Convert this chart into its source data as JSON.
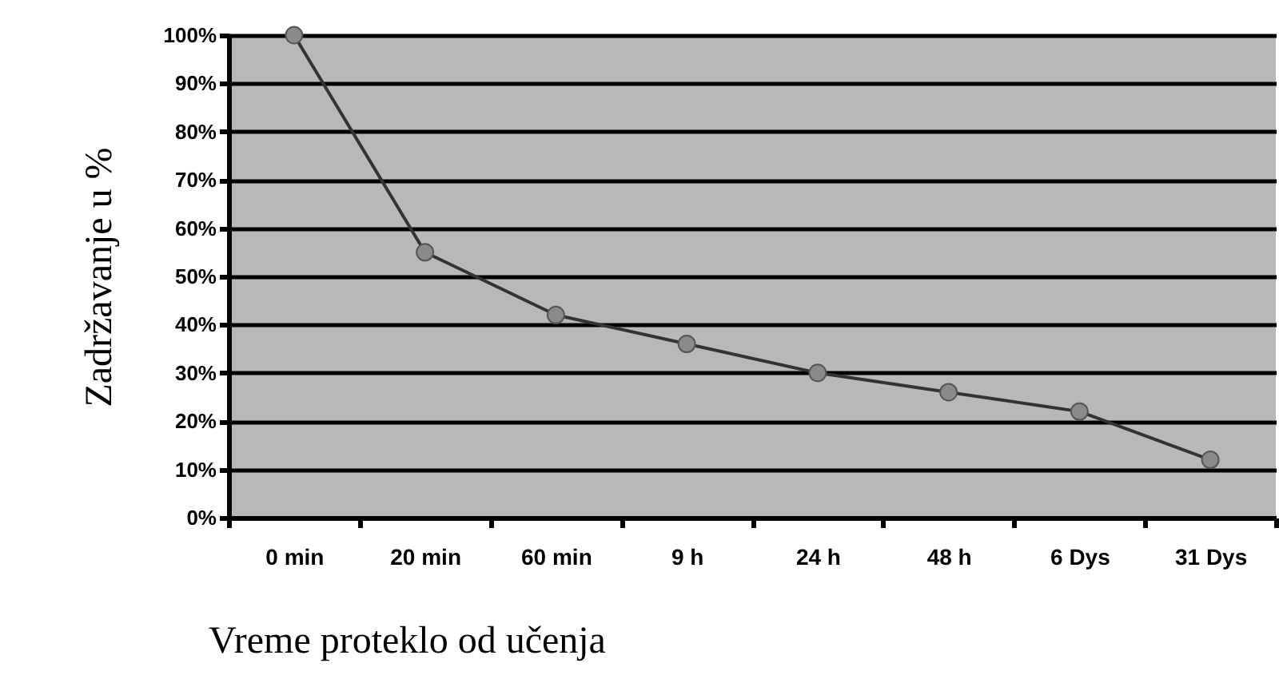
{
  "chart_data": {
    "type": "line",
    "xlabel": "Vreme proteklo od učenja",
    "ylabel": "Zadržavanje u %",
    "categories": [
      "0 min",
      "20 min",
      "60 min",
      "9 h",
      "24 h",
      "48 h",
      "6 Dys",
      "31 Dys"
    ],
    "series": [
      {
        "color": "#333333",
        "values": [
          100,
          55,
          42,
          36,
          30,
          26,
          22,
          12
        ]
      }
    ],
    "ylim": [
      0,
      100
    ],
    "yticks": [
      {
        "value": 0,
        "label": "0%"
      },
      {
        "value": 10,
        "label": "10%"
      },
      {
        "value": 20,
        "label": "20%"
      },
      {
        "value": 30,
        "label": "30%"
      },
      {
        "value": 40,
        "label": "40%"
      },
      {
        "value": 50,
        "label": "50%"
      },
      {
        "value": 60,
        "label": "60%"
      },
      {
        "value": 70,
        "label": "70%"
      },
      {
        "value": 80,
        "label": "80%"
      },
      {
        "value": 90,
        "label": "90%"
      },
      {
        "value": 100,
        "label": "100%"
      }
    ],
    "grid": "y",
    "marker": "circle",
    "line_style": "solid",
    "legend": false
  }
}
